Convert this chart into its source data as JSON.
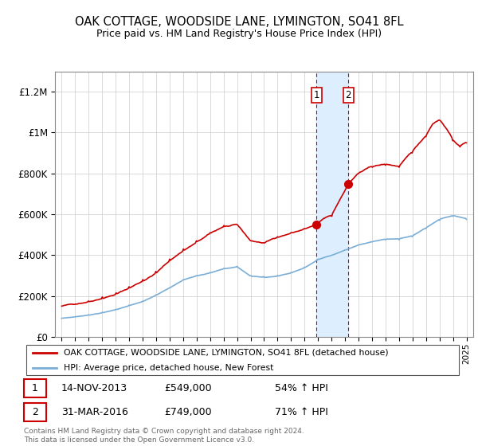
{
  "title": "OAK COTTAGE, WOODSIDE LANE, LYMINGTON, SO41 8FL",
  "subtitle": "Price paid vs. HM Land Registry's House Price Index (HPI)",
  "legend_line1": "OAK COTTAGE, WOODSIDE LANE, LYMINGTON, SO41 8FL (detached house)",
  "legend_line2": "HPI: Average price, detached house, New Forest",
  "sale1_date": "14-NOV-2013",
  "sale1_price": 549000,
  "sale1_pct": "54%",
  "sale2_date": "31-MAR-2016",
  "sale2_price": 749000,
  "sale2_pct": "71%",
  "footer": "Contains HM Land Registry data © Crown copyright and database right 2024.\nThis data is licensed under the Open Government Licence v3.0.",
  "red_color": "#cc0000",
  "blue_color": "#7aaed6",
  "shade_color": "#ddeeff",
  "ylim": [
    0,
    1300000
  ],
  "yticks": [
    0,
    200000,
    400000,
    600000,
    800000,
    1000000,
    1200000
  ],
  "sale1_year": 2013.88,
  "sale2_year": 2016.25,
  "red_keypoints_x": [
    1995,
    1996,
    1997,
    1998,
    1999,
    2000,
    2001,
    2002,
    2003,
    2004,
    2005,
    2006,
    2007,
    2008,
    2009,
    2010,
    2011,
    2012,
    2013,
    2013.88,
    2014.5,
    2015,
    2016.25,
    2017,
    2018,
    2019,
    2020,
    2021,
    2022,
    2022.5,
    2023,
    2023.5,
    2024,
    2024.5,
    2025
  ],
  "red_keypoints_y": [
    150000,
    160000,
    175000,
    195000,
    215000,
    245000,
    280000,
    320000,
    380000,
    430000,
    470000,
    510000,
    545000,
    550000,
    470000,
    460000,
    490000,
    510000,
    530000,
    549000,
    580000,
    590000,
    749000,
    800000,
    830000,
    840000,
    830000,
    900000,
    980000,
    1040000,
    1060000,
    1020000,
    960000,
    930000,
    950000
  ],
  "blue_keypoints_x": [
    1995,
    1996,
    1997,
    1998,
    1999,
    2000,
    2001,
    2002,
    2003,
    2004,
    2005,
    2006,
    2007,
    2008,
    2009,
    2010,
    2011,
    2012,
    2013,
    2014,
    2015,
    2016,
    2017,
    2018,
    2019,
    2020,
    2021,
    2022,
    2023,
    2024,
    2025
  ],
  "blue_keypoints_y": [
    90000,
    98000,
    108000,
    120000,
    135000,
    155000,
    175000,
    205000,
    240000,
    280000,
    300000,
    315000,
    335000,
    345000,
    300000,
    295000,
    300000,
    315000,
    340000,
    380000,
    400000,
    425000,
    450000,
    465000,
    475000,
    475000,
    490000,
    530000,
    570000,
    590000,
    575000
  ]
}
